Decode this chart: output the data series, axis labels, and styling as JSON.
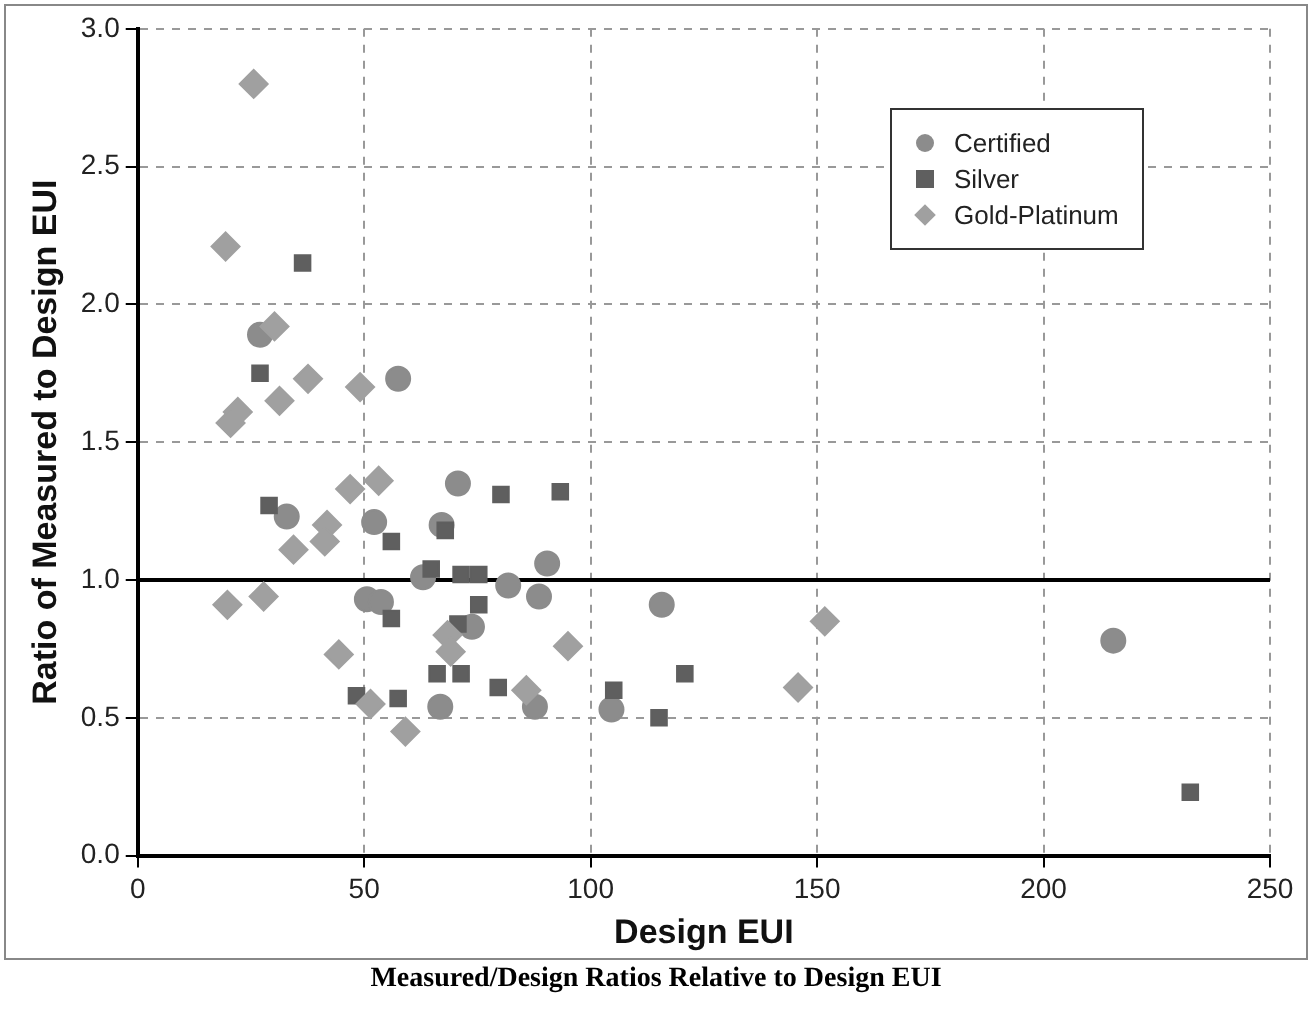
{
  "chart_data": {
    "type": "scatter",
    "title": "Measured/Design Ratios Relative to Design EUI",
    "xlabel": "Design EUI",
    "ylabel": "Ratio of Measured to Design EUI",
    "xlim": [
      0,
      250
    ],
    "xticks": [
      0,
      50,
      100,
      150,
      200,
      250
    ],
    "ylim": [
      0,
      3
    ],
    "yticks": [
      {
        "value": 0,
        "label": "0.0"
      },
      0.5,
      {
        "value": 1,
        "label": "1.0"
      },
      1.5,
      {
        "value": 2,
        "label": "2.0"
      },
      2.5,
      {
        "value": 3,
        "label": "3.0"
      }
    ],
    "grid": true,
    "legend": "top right",
    "ref_lines": [
      {
        "axis": "y",
        "value": 1,
        "color": "#000000"
      }
    ],
    "series": [
      {
        "name": "Certified",
        "color": "#8c8c8c",
        "marker": "circle",
        "x": [
          27.0,
          57.5,
          70.7,
          32.9,
          52.2,
          67.1,
          50.6,
          53.7,
          63,
          73.8,
          66.8,
          90.4,
          81.8,
          88.6,
          115.7,
          87.7,
          104.6,
          215.4
        ],
        "values": [
          1.89,
          1.73,
          1.35,
          1.23,
          1.21,
          1.2,
          0.93,
          0.92,
          1.01,
          0.83,
          0.54,
          1.06,
          0.98,
          0.94,
          0.91,
          0.54,
          0.53,
          0.78
        ]
      },
      {
        "name": "Silver",
        "color": "#5f5f5f",
        "marker": "square",
        "x": [
          36.4,
          27.0,
          29.0,
          56.0,
          67.9,
          56.0,
          64.8,
          71.4,
          75.3,
          75.3,
          70.7,
          66.1,
          71.4,
          48.3,
          57.5,
          80.2,
          93.3,
          79.6,
          120.8,
          105.1,
          115.1,
          232.4
        ],
        "values": [
          2.15,
          1.75,
          1.27,
          1.14,
          1.18,
          0.86,
          1.04,
          1.02,
          1.02,
          0.91,
          0.84,
          0.66,
          0.66,
          0.58,
          0.57,
          1.31,
          1.32,
          0.61,
          0.66,
          0.6,
          0.5,
          0.23
        ]
      },
      {
        "name": "Gold-Platinum",
        "color": "#a0a0a0",
        "marker": "diamond",
        "x": [
          25.6,
          19.4,
          30.2,
          37.6,
          49.1,
          31.3,
          22.1,
          20.5,
          41.8,
          46.9,
          53.2,
          34.4,
          41.3,
          19.8,
          27.8,
          68.4,
          69.1,
          44.4,
          51.4,
          59.1,
          95.0,
          151.7,
          85.8,
          145.8
        ],
        "values": [
          2.8,
          2.21,
          1.92,
          1.73,
          1.7,
          1.65,
          1.61,
          1.57,
          1.2,
          1.33,
          1.36,
          1.11,
          1.14,
          0.91,
          0.94,
          0.8,
          0.74,
          0.73,
          0.55,
          0.45,
          0.76,
          0.85,
          0.6,
          0.61
        ]
      }
    ]
  }
}
